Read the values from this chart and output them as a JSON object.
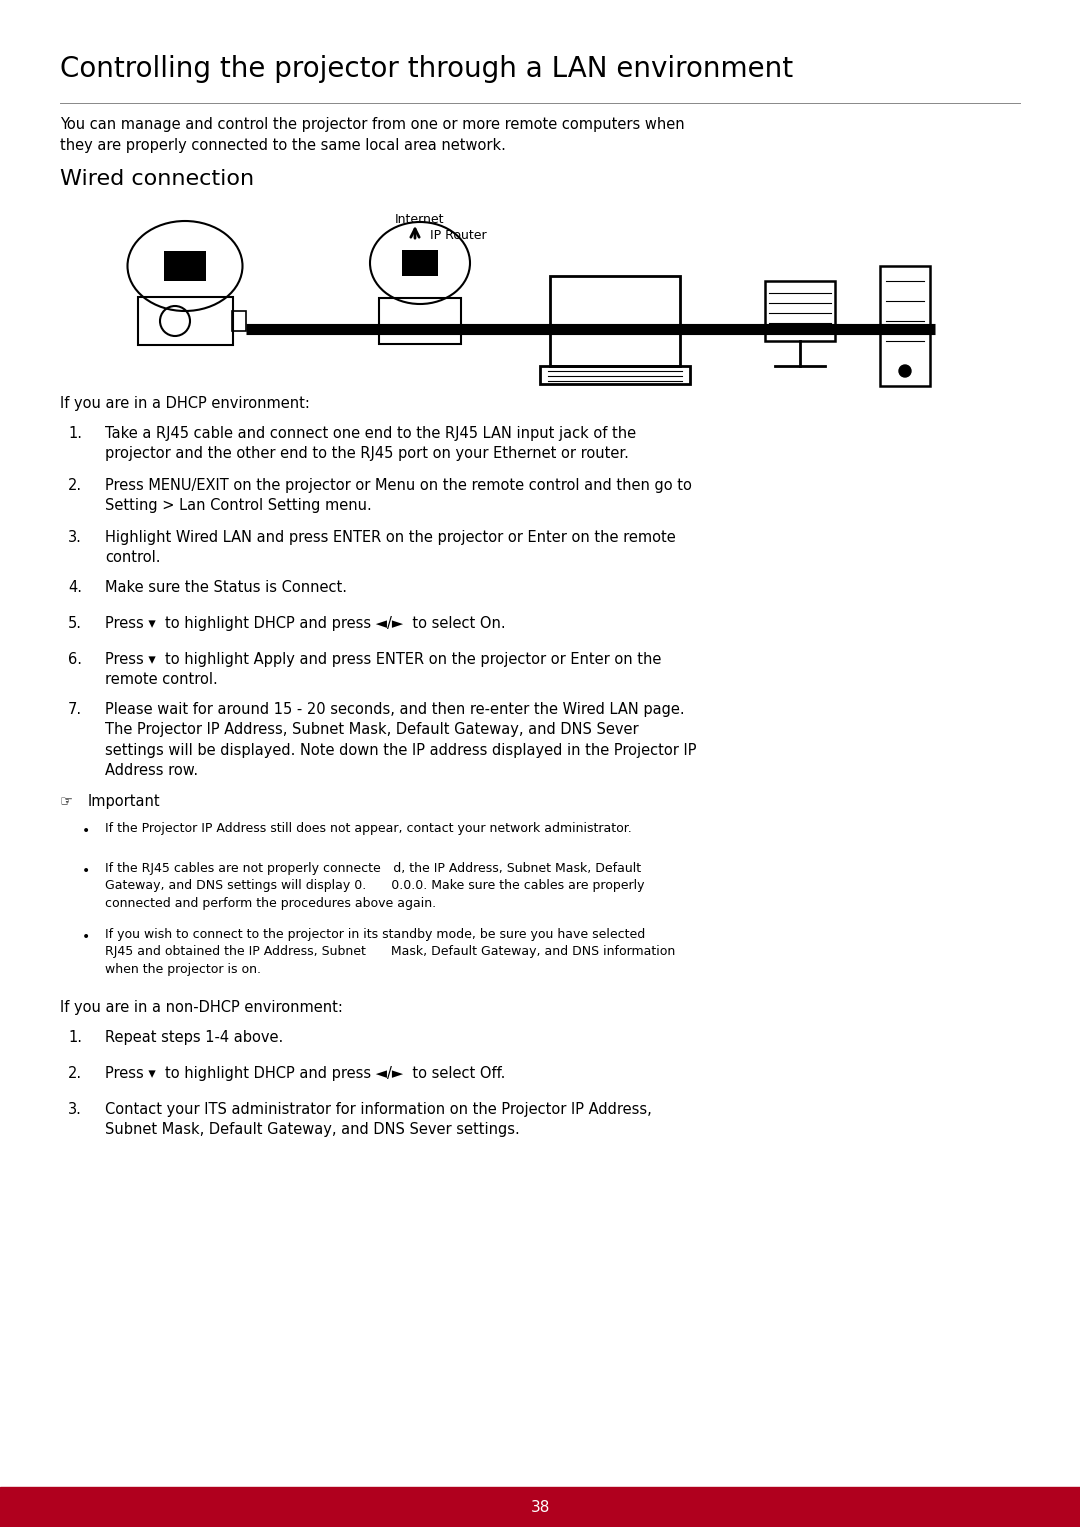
{
  "title": "Controlling the projector through a LAN environment",
  "subtitle": "You can manage and control the projector from one or more remote computers when\nthey are properly connected to the same local area network.",
  "section1": "Wired connection",
  "internet_label": "Internet",
  "ip_router_label": "IP Router",
  "dhcp_header": "If you are in a DHCP environment:",
  "dhcp_items": [
    "Take a RJ45 cable and connect one end to the RJ45 LAN input jack of the\nprojector and the other end to the RJ45 port on your Ethernet or router.",
    "Press MENU/EXIT on the projector or Menu on the remote control and then go to\nSetting > Lan Control Setting menu.",
    "Highlight Wired LAN and press ENTER on the projector or Enter on the remote\ncontrol.",
    "Make sure the Status is Connect.",
    "Press ▾  to highlight DHCP and press ◄/►  to select On.",
    "Press ▾  to highlight Apply and press ENTER on the projector or Enter on the\nremote control.",
    "Please wait for around 15 - 20 seconds, and then re-enter the Wired LAN page.\nThe Projector IP Address, Subnet Mask, Default Gateway, and DNS Sever\nsettings will be displayed. Note down the IP address displayed in the Projector IP\nAddress row."
  ],
  "important_header": "Important",
  "important_bullets": [
    "If the Projector IP Address still does not appear, contact your network administrator.",
    "If the RJ45 cables are not properly connecte d, the IP Address, Subnet Mask, Default\nGateway, and DNS settings will display 0.  0.0.0. Make sure the cables are properly\nconnected and perform the procedures above again.",
    "If you wish to connect to the projector in its standby mode, be sure you have selected\nRJ45 and obtained the IP Address, Subnet  Mask, Default Gateway, and DNS information\nwhen the projector is on."
  ],
  "non_dhcp_header": "If you are in a non-DHCP environment:",
  "non_dhcp_items": [
    "Repeat steps 1-4 above.",
    "Press ▾  to highlight DHCP and press ◄/►  to select Off.",
    "Contact your ITS administrator for information on the Projector IP Address,\nSubnet Mask, Default Gateway, and DNS Sever settings."
  ],
  "page_number": "38",
  "bg_color": "#ffffff",
  "footer_color": "#b0001e",
  "text_color": "#000000",
  "title_fontsize": 20,
  "section_fontsize": 16,
  "body_fontsize": 10.5,
  "small_fontsize": 9.0
}
